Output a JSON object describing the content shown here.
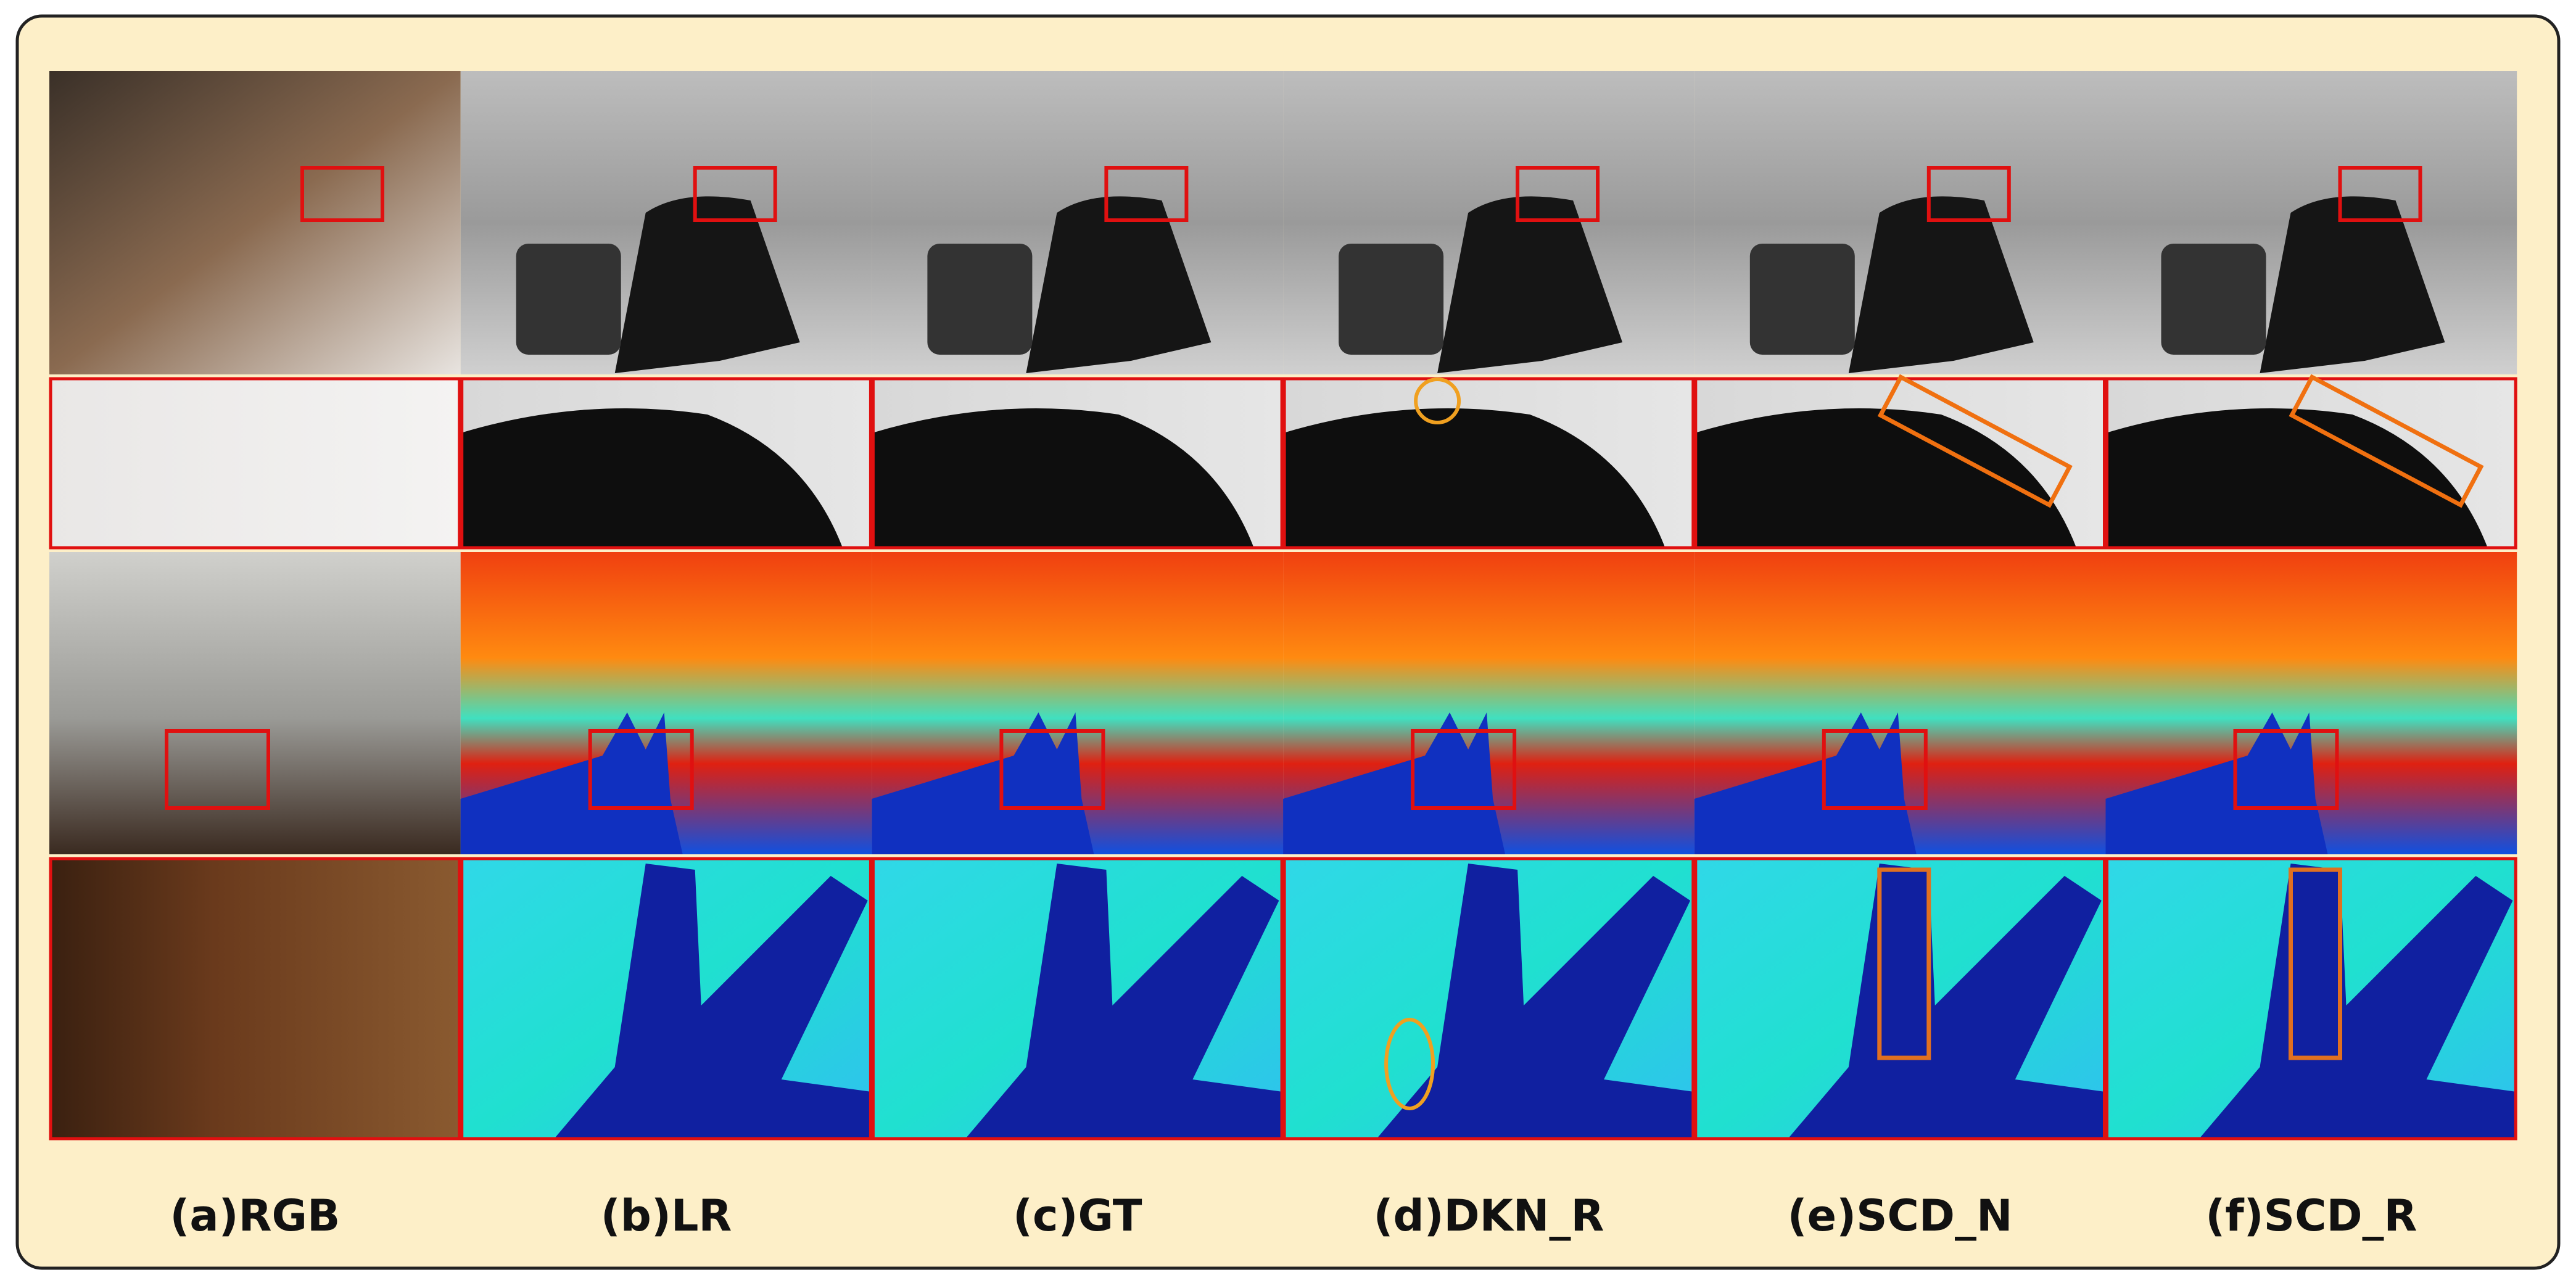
{
  "captions": [
    "(a)RGB",
    "(b)LR",
    "(c)GT",
    "(d)DKN_R",
    "(e)SCD_N",
    "(f)SCD_R"
  ]
}
